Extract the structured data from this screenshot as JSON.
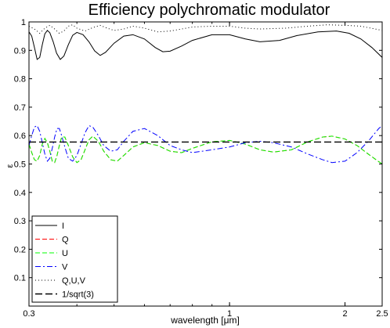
{
  "chart_data": {
    "type": "line",
    "title": "Efficiency polychromatic modulator",
    "xlabel": "wavelength [μm]",
    "ylabel": "ε",
    "xscale": "log",
    "xlim": [
      0.3,
      2.5
    ],
    "ylim": [
      0,
      1
    ],
    "grid": false,
    "legend_position": "bottom-left",
    "x_ticks": [
      0.3,
      1,
      2,
      2.5
    ],
    "x_tick_labels": [
      "0.3",
      "1",
      "2",
      "2.5"
    ],
    "y_ticks": [
      0,
      0.1,
      0.2,
      0.3,
      0.4,
      0.5,
      0.6,
      0.7,
      0.8,
      0.9,
      1
    ],
    "y_tick_labels": [
      "",
      "0.1",
      "0.2",
      "0.3",
      "0.4",
      "0.5",
      "0.6",
      "0.7",
      "0.8",
      "0.9",
      "1"
    ],
    "series": [
      {
        "name": "I",
        "color": "#000000",
        "style": "solid",
        "points": [
          [
            0.3,
            0.965
          ],
          [
            0.305,
            0.95
          ],
          [
            0.31,
            0.91
          ],
          [
            0.315,
            0.868
          ],
          [
            0.32,
            0.875
          ],
          [
            0.325,
            0.92
          ],
          [
            0.33,
            0.958
          ],
          [
            0.335,
            0.97
          ],
          [
            0.34,
            0.962
          ],
          [
            0.347,
            0.93
          ],
          [
            0.354,
            0.89
          ],
          [
            0.362,
            0.868
          ],
          [
            0.37,
            0.88
          ],
          [
            0.38,
            0.92
          ],
          [
            0.39,
            0.953
          ],
          [
            0.4,
            0.963
          ],
          [
            0.415,
            0.955
          ],
          [
            0.43,
            0.93
          ],
          [
            0.445,
            0.898
          ],
          [
            0.46,
            0.882
          ],
          [
            0.475,
            0.893
          ],
          [
            0.5,
            0.925
          ],
          [
            0.53,
            0.95
          ],
          [
            0.56,
            0.955
          ],
          [
            0.6,
            0.94
          ],
          [
            0.64,
            0.91
          ],
          [
            0.67,
            0.895
          ],
          [
            0.7,
            0.897
          ],
          [
            0.75,
            0.915
          ],
          [
            0.8,
            0.935
          ],
          [
            0.9,
            0.955
          ],
          [
            1.0,
            0.955
          ],
          [
            1.1,
            0.94
          ],
          [
            1.2,
            0.93
          ],
          [
            1.35,
            0.935
          ],
          [
            1.5,
            0.952
          ],
          [
            1.7,
            0.965
          ],
          [
            1.9,
            0.968
          ],
          [
            2.05,
            0.96
          ],
          [
            2.2,
            0.94
          ],
          [
            2.35,
            0.91
          ],
          [
            2.5,
            0.875
          ]
        ]
      },
      {
        "name": "Q",
        "color": "#ff0000",
        "style": "dashed",
        "points": [
          [
            0.3,
            0.57
          ],
          [
            0.305,
            0.54
          ],
          [
            0.31,
            0.515
          ],
          [
            0.315,
            0.51
          ],
          [
            0.32,
            0.53
          ],
          [
            0.325,
            0.57
          ],
          [
            0.33,
            0.59
          ],
          [
            0.335,
            0.575
          ],
          [
            0.34,
            0.545
          ],
          [
            0.345,
            0.51
          ],
          [
            0.35,
            0.505
          ],
          [
            0.355,
            0.53
          ],
          [
            0.36,
            0.565
          ],
          [
            0.365,
            0.595
          ],
          [
            0.372,
            0.595
          ],
          [
            0.38,
            0.565
          ],
          [
            0.39,
            0.525
          ],
          [
            0.4,
            0.505
          ],
          [
            0.41,
            0.515
          ],
          [
            0.42,
            0.55
          ],
          [
            0.43,
            0.585
          ],
          [
            0.44,
            0.598
          ],
          [
            0.455,
            0.58
          ],
          [
            0.47,
            0.545
          ],
          [
            0.49,
            0.515
          ],
          [
            0.51,
            0.51
          ],
          [
            0.53,
            0.53
          ],
          [
            0.56,
            0.56
          ],
          [
            0.6,
            0.575
          ],
          [
            0.65,
            0.565
          ],
          [
            0.7,
            0.545
          ],
          [
            0.75,
            0.54
          ],
          [
            0.8,
            0.555
          ],
          [
            0.9,
            0.578
          ],
          [
            1.0,
            0.583
          ],
          [
            1.1,
            0.57
          ],
          [
            1.2,
            0.55
          ],
          [
            1.3,
            0.542
          ],
          [
            1.45,
            0.55
          ],
          [
            1.6,
            0.578
          ],
          [
            1.75,
            0.595
          ],
          [
            1.85,
            0.598
          ],
          [
            2.0,
            0.588
          ],
          [
            2.15,
            0.565
          ],
          [
            2.3,
            0.535
          ],
          [
            2.45,
            0.508
          ],
          [
            2.5,
            0.5
          ]
        ]
      },
      {
        "name": "U",
        "color": "#00ff00",
        "style": "dashed",
        "points": [
          [
            0.3,
            0.57
          ],
          [
            0.305,
            0.54
          ],
          [
            0.31,
            0.515
          ],
          [
            0.315,
            0.51
          ],
          [
            0.32,
            0.53
          ],
          [
            0.325,
            0.57
          ],
          [
            0.33,
            0.59
          ],
          [
            0.335,
            0.575
          ],
          [
            0.34,
            0.545
          ],
          [
            0.345,
            0.51
          ],
          [
            0.35,
            0.505
          ],
          [
            0.355,
            0.53
          ],
          [
            0.36,
            0.565
          ],
          [
            0.365,
            0.595
          ],
          [
            0.372,
            0.595
          ],
          [
            0.38,
            0.565
          ],
          [
            0.39,
            0.525
          ],
          [
            0.4,
            0.505
          ],
          [
            0.41,
            0.515
          ],
          [
            0.42,
            0.55
          ],
          [
            0.43,
            0.585
          ],
          [
            0.44,
            0.598
          ],
          [
            0.455,
            0.58
          ],
          [
            0.47,
            0.545
          ],
          [
            0.49,
            0.515
          ],
          [
            0.51,
            0.51
          ],
          [
            0.53,
            0.53
          ],
          [
            0.56,
            0.56
          ],
          [
            0.6,
            0.575
          ],
          [
            0.65,
            0.565
          ],
          [
            0.7,
            0.545
          ],
          [
            0.75,
            0.54
          ],
          [
            0.8,
            0.555
          ],
          [
            0.9,
            0.578
          ],
          [
            1.0,
            0.583
          ],
          [
            1.1,
            0.57
          ],
          [
            1.2,
            0.55
          ],
          [
            1.3,
            0.542
          ],
          [
            1.45,
            0.55
          ],
          [
            1.6,
            0.578
          ],
          [
            1.75,
            0.595
          ],
          [
            1.85,
            0.598
          ],
          [
            2.0,
            0.588
          ],
          [
            2.15,
            0.565
          ],
          [
            2.3,
            0.535
          ],
          [
            2.45,
            0.508
          ],
          [
            2.5,
            0.5
          ]
        ]
      },
      {
        "name": "V",
        "color": "#0000ff",
        "style": "dashdot",
        "points": [
          [
            0.3,
            0.565
          ],
          [
            0.305,
            0.6
          ],
          [
            0.31,
            0.63
          ],
          [
            0.315,
            0.635
          ],
          [
            0.32,
            0.615
          ],
          [
            0.325,
            0.575
          ],
          [
            0.33,
            0.535
          ],
          [
            0.335,
            0.51
          ],
          [
            0.34,
            0.52
          ],
          [
            0.345,
            0.555
          ],
          [
            0.35,
            0.595
          ],
          [
            0.355,
            0.625
          ],
          [
            0.36,
            0.625
          ],
          [
            0.365,
            0.6
          ],
          [
            0.372,
            0.56
          ],
          [
            0.38,
            0.52
          ],
          [
            0.39,
            0.51
          ],
          [
            0.4,
            0.53
          ],
          [
            0.41,
            0.57
          ],
          [
            0.42,
            0.61
          ],
          [
            0.43,
            0.635
          ],
          [
            0.44,
            0.63
          ],
          [
            0.455,
            0.6
          ],
          [
            0.47,
            0.565
          ],
          [
            0.49,
            0.545
          ],
          [
            0.51,
            0.55
          ],
          [
            0.53,
            0.58
          ],
          [
            0.56,
            0.615
          ],
          [
            0.6,
            0.625
          ],
          [
            0.65,
            0.6
          ],
          [
            0.7,
            0.565
          ],
          [
            0.75,
            0.55
          ],
          [
            0.8,
            0.54
          ],
          [
            0.9,
            0.55
          ],
          [
            1.0,
            0.56
          ],
          [
            1.1,
            0.575
          ],
          [
            1.2,
            0.58
          ],
          [
            1.3,
            0.575
          ],
          [
            1.45,
            0.56
          ],
          [
            1.6,
            0.535
          ],
          [
            1.75,
            0.515
          ],
          [
            1.85,
            0.505
          ],
          [
            2.0,
            0.51
          ],
          [
            2.15,
            0.54
          ],
          [
            2.3,
            0.58
          ],
          [
            2.45,
            0.625
          ],
          [
            2.5,
            0.635
          ]
        ]
      },
      {
        "name": "Q,U,V",
        "color": "#000000",
        "style": "dotted",
        "points": [
          [
            0.3,
            0.985
          ],
          [
            0.31,
            0.975
          ],
          [
            0.32,
            0.96
          ],
          [
            0.33,
            0.978
          ],
          [
            0.34,
            0.988
          ],
          [
            0.35,
            0.975
          ],
          [
            0.36,
            0.96
          ],
          [
            0.37,
            0.968
          ],
          [
            0.38,
            0.985
          ],
          [
            0.39,
            0.99
          ],
          [
            0.4,
            0.978
          ],
          [
            0.42,
            0.968
          ],
          [
            0.44,
            0.98
          ],
          [
            0.46,
            0.988
          ],
          [
            0.48,
            0.978
          ],
          [
            0.5,
            0.97
          ],
          [
            0.53,
            0.975
          ],
          [
            0.56,
            0.985
          ],
          [
            0.6,
            0.978
          ],
          [
            0.65,
            0.965
          ],
          [
            0.7,
            0.968
          ],
          [
            0.75,
            0.975
          ],
          [
            0.8,
            0.982
          ],
          [
            0.9,
            0.985
          ],
          [
            1.0,
            0.985
          ],
          [
            1.1,
            0.978
          ],
          [
            1.2,
            0.975
          ],
          [
            1.4,
            0.978
          ],
          [
            1.6,
            0.985
          ],
          [
            1.8,
            0.99
          ],
          [
            2.0,
            0.988
          ],
          [
            2.2,
            0.985
          ],
          [
            2.4,
            0.975
          ],
          [
            2.5,
            0.97
          ]
        ]
      },
      {
        "name": "1/sqrt(3)",
        "color": "#000000",
        "style": "longdash",
        "points": [
          [
            0.3,
            0.57735
          ],
          [
            2.5,
            0.57735
          ]
        ]
      }
    ]
  }
}
